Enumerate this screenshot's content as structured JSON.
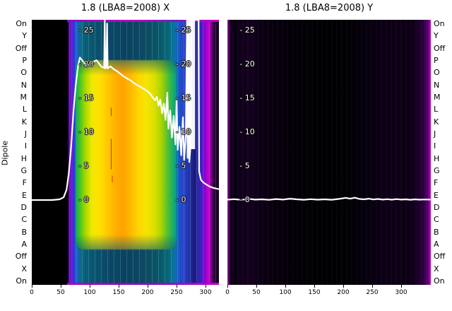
{
  "figure": {
    "background": "#ffffff"
  },
  "plots": [
    {
      "title": "1.8 (LBA8=2008) X"
    },
    {
      "title": "1.8 (LBA8=2008) Y"
    }
  ],
  "axes": {
    "ylabel": "Dipole",
    "dipole_labels": [
      "On",
      "Y",
      "Off",
      "P",
      "O",
      "N",
      "M",
      "L",
      "K",
      "J",
      "I",
      "H",
      "G",
      "F",
      "E",
      "D",
      "C",
      "B",
      "A",
      "Off",
      "X",
      "On"
    ],
    "x_tick_labels": [
      "0",
      "50",
      "100",
      "150",
      "200",
      "250",
      "300"
    ],
    "y_tick_labels": [
      "- 25",
      "- 20",
      "- 15",
      "- 10",
      "- 5",
      "- 0"
    ]
  },
  "colors": {
    "curve": "#ffffff",
    "rfi_red": "#cc1100",
    "magenta_edge": "#cc00cc",
    "text": "#000000"
  },
  "chart_data": [
    {
      "type": "heatmap",
      "title": "1.8 (LBA8=2008) X",
      "xlabel": "",
      "ylabel": "Dipole",
      "x_range": [
        0,
        323
      ],
      "y_range": [
        0,
        28
      ],
      "x_ticks": [
        0,
        50,
        100,
        150,
        200,
        250,
        300
      ],
      "y_ticks": [
        25,
        20,
        15,
        10,
        5,
        0
      ],
      "color_bands": [
        {
          "x_start": 0,
          "x_end": 62,
          "color": "#000000"
        },
        {
          "x_start": 62,
          "x_end": 70,
          "color": "#6a10c8"
        },
        {
          "x_start": 70,
          "x_end": 78,
          "color": "#2840d8"
        },
        {
          "x_start": 78,
          "x_end": 86,
          "color": "#0aa090"
        },
        {
          "x_start": 86,
          "x_end": 96,
          "color": "#30c030"
        },
        {
          "x_start": 96,
          "x_end": 110,
          "color": "#b0d800"
        },
        {
          "x_start": 110,
          "x_end": 130,
          "color": "#ffe800"
        },
        {
          "x_start": 130,
          "x_end": 165,
          "color": "#ffb000"
        },
        {
          "x_start": 165,
          "x_end": 205,
          "color": "#ffd800"
        },
        {
          "x_start": 205,
          "x_end": 230,
          "color": "#c8d800"
        },
        {
          "x_start": 230,
          "x_end": 248,
          "color": "#50c020"
        },
        {
          "x_start": 248,
          "x_end": 262,
          "color": "#00a8a0"
        },
        {
          "x_start": 262,
          "x_end": 278,
          "color": "#1a58c8"
        },
        {
          "x_start": 278,
          "x_end": 292,
          "color": "#202890"
        },
        {
          "x_start": 292,
          "x_end": 300,
          "color": "#5018c8"
        },
        {
          "x_start": 300,
          "x_end": 310,
          "color": "#cc00cc"
        },
        {
          "x_start": 310,
          "x_end": 323,
          "color": "#20002a"
        }
      ],
      "core_y_range": [
        1.5,
        25
      ],
      "overlay_line": {
        "name": "bandpass-X",
        "color": "#ffffff",
        "points": [
          [
            0,
            0
          ],
          [
            35,
            0
          ],
          [
            48,
            0.1
          ],
          [
            55,
            0.4
          ],
          [
            60,
            1.5
          ],
          [
            64,
            4
          ],
          [
            68,
            8
          ],
          [
            72,
            13
          ],
          [
            76,
            17
          ],
          [
            80,
            19.8
          ],
          [
            83,
            21
          ],
          [
            87,
            20.6
          ],
          [
            92,
            20.1
          ],
          [
            97,
            19.9
          ],
          [
            102,
            20.1
          ],
          [
            107,
            20.4
          ],
          [
            112,
            20.6
          ],
          [
            117,
            20.0
          ],
          [
            121,
            19.6
          ],
          [
            125,
            19.5
          ],
          [
            126,
            28
          ],
          [
            127,
            19.4
          ],
          [
            129,
            19.6
          ],
          [
            130,
            26
          ],
          [
            131,
            19.4
          ],
          [
            136,
            19.7
          ],
          [
            141,
            19.3
          ],
          [
            147,
            19.0
          ],
          [
            153,
            18.6
          ],
          [
            159,
            18.2
          ],
          [
            165,
            17.9
          ],
          [
            171,
            17.6
          ],
          [
            177,
            17.2
          ],
          [
            183,
            16.9
          ],
          [
            189,
            16.6
          ],
          [
            195,
            16.3
          ],
          [
            200,
            16.0
          ],
          [
            205,
            15.6
          ],
          [
            209,
            15.1
          ],
          [
            213,
            14.7
          ],
          [
            216,
            15.2
          ],
          [
            219,
            13.9
          ],
          [
            222,
            14.8
          ],
          [
            225,
            12.8
          ],
          [
            228,
            14.2
          ],
          [
            231,
            11.8
          ],
          [
            234,
            15.8
          ],
          [
            236,
            10.5
          ],
          [
            239,
            13.2
          ],
          [
            242,
            9.2
          ],
          [
            245,
            12.4
          ],
          [
            248,
            8.2
          ],
          [
            250,
            14.6
          ],
          [
            252,
            7.4
          ],
          [
            255,
            10.8
          ],
          [
            258,
            6.6
          ],
          [
            261,
            12.2
          ],
          [
            263,
            5.9
          ],
          [
            266,
            9.4
          ],
          [
            268,
            28
          ],
          [
            269,
            6.2
          ],
          [
            271,
            28
          ],
          [
            272,
            5.6
          ],
          [
            274,
            7.8
          ],
          [
            276,
            28
          ],
          [
            288,
            28
          ],
          [
            289,
            4.2
          ],
          [
            292,
            3.0
          ],
          [
            296,
            2.6
          ],
          [
            301,
            2.3
          ],
          [
            307,
            2.0
          ],
          [
            313,
            1.8
          ],
          [
            318,
            1.7
          ],
          [
            323,
            1.6
          ]
        ]
      },
      "artifacts": [
        {
          "x": 276,
          "width": 12,
          "v_top": 28,
          "v_bottom": 7.5,
          "color": "#ffffff",
          "opacity": 0.95
        },
        {
          "x": 137,
          "width": 1,
          "v_top": 9,
          "v_bottom": 4.5,
          "color": "#cc1100",
          "opacity": 1
        },
        {
          "x": 137,
          "width": 1,
          "v_top": 13.6,
          "v_bottom": 12.4,
          "color": "#cc1100",
          "opacity": 1
        },
        {
          "x": 139,
          "width": 0.8,
          "v_top": 3.6,
          "v_bottom": 2.6,
          "color": "#cc1100",
          "opacity": 1
        }
      ]
    },
    {
      "type": "heatmap",
      "title": "1.8 (LBA8=2008) Y",
      "xlabel": "",
      "ylabel": "Dipole",
      "x_range": [
        0,
        351
      ],
      "y_range": [
        0,
        28
      ],
      "x_ticks": [
        0,
        50,
        100,
        150,
        200,
        250,
        300
      ],
      "y_ticks": [
        25,
        20,
        15,
        10,
        5,
        0
      ],
      "color_bands": [
        {
          "x_start": 0,
          "x_end": 2,
          "color": "#cc00cc"
        },
        {
          "x_start": 2,
          "x_end": 346,
          "color": "#050008"
        },
        {
          "x_start": 346,
          "x_end": 351,
          "color": "#cc00cc"
        }
      ],
      "core_y_range": null,
      "overlay_line": {
        "name": "bandpass-Y",
        "color": "#ffffff",
        "points": [
          [
            0,
            0.05
          ],
          [
            12,
            0.12
          ],
          [
            24,
            0.02
          ],
          [
            36,
            0.18
          ],
          [
            48,
            0.06
          ],
          [
            60,
            0.1
          ],
          [
            72,
            0.03
          ],
          [
            84,
            0.15
          ],
          [
            96,
            0.06
          ],
          [
            108,
            0.2
          ],
          [
            120,
            0.1
          ],
          [
            132,
            0.04
          ],
          [
            144,
            0.12
          ],
          [
            156,
            0.05
          ],
          [
            168,
            0.1
          ],
          [
            180,
            0.04
          ],
          [
            192,
            0.16
          ],
          [
            204,
            0.32
          ],
          [
            212,
            0.2
          ],
          [
            220,
            0.34
          ],
          [
            228,
            0.16
          ],
          [
            236,
            0.1
          ],
          [
            244,
            0.2
          ],
          [
            252,
            0.08
          ],
          [
            260,
            0.16
          ],
          [
            268,
            0.06
          ],
          [
            276,
            0.12
          ],
          [
            284,
            0.05
          ],
          [
            292,
            0.14
          ],
          [
            300,
            0.06
          ],
          [
            308,
            0.1
          ],
          [
            316,
            0.04
          ],
          [
            324,
            0.1
          ],
          [
            332,
            0.05
          ],
          [
            340,
            0.08
          ],
          [
            350,
            0.06
          ]
        ]
      },
      "artifacts": []
    }
  ]
}
